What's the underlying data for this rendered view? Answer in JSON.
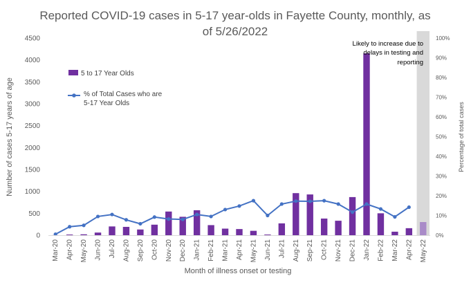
{
  "chart_data": {
    "type": "bar",
    "title_line1": "Reported COVID-19 cases in 5-17 year-olds in Fayette County, monthly, as",
    "title_line2": "of 5/26/2022",
    "xlabel": "Month of illness onset or testing",
    "ylabel": "Number of cases 5-17 years of age",
    "y2label": "Percentage of total cases",
    "ylim": [
      0,
      4500
    ],
    "y2lim": [
      0,
      100
    ],
    "yticks": [
      "0",
      "500",
      "1000",
      "1500",
      "2000",
      "2500",
      "3000",
      "3500",
      "4000",
      "4500"
    ],
    "y2ticks": [
      "0%",
      "10%",
      "20%",
      "30%",
      "40%",
      "50%",
      "60%",
      "70%",
      "80%",
      "90%",
      "100%"
    ],
    "categories": [
      "Mar-20",
      "Apr-20",
      "May-20",
      "Jun-20",
      "Jul-20",
      "Aug-20",
      "Sep-20",
      "Oct-20",
      "Nov-20",
      "Dec-20",
      "Jan-21",
      "Feb-21",
      "Mar-21",
      "Apr-21",
      "May-21",
      "Jun-21",
      "Jul-21",
      "Aug-21",
      "Sep-21",
      "Oct-21",
      "Nov-21",
      "Dec-21",
      "Jan-22",
      "Feb-22",
      "Mar-22",
      "Apr-22",
      "May-22"
    ],
    "series": [
      {
        "name": "5 to 17 Year Olds",
        "kind": "bar",
        "color": "#7030a0",
        "values": [
          2,
          15,
          20,
          60,
          200,
          190,
          130,
          240,
          540,
          420,
          570,
          230,
          150,
          140,
          100,
          15,
          270,
          960,
          930,
          380,
          330,
          870,
          4150,
          500,
          80,
          160,
          null
        ]
      },
      {
        "name": "5 to 17 Year Olds (partial)",
        "kind": "bar-partial",
        "color": "#a98bc8",
        "values": [
          null,
          null,
          null,
          null,
          null,
          null,
          null,
          null,
          null,
          null,
          null,
          null,
          null,
          null,
          null,
          null,
          null,
          null,
          null,
          null,
          null,
          null,
          null,
          null,
          null,
          null,
          300
        ]
      },
      {
        "name_line1": "% of Total Cases who are",
        "name_line2": "5-17 Year Olds",
        "kind": "line",
        "color": "#4472c4",
        "values": [
          0.5,
          4.3,
          5.0,
          9.5,
          10.5,
          7.8,
          5.8,
          9.2,
          8.2,
          8.0,
          10.5,
          9.5,
          13.0,
          14.8,
          17.5,
          10.0,
          15.8,
          17.3,
          17.2,
          17.5,
          15.8,
          11.7,
          15.8,
          13.3,
          9.3,
          14.2,
          null
        ]
      }
    ],
    "annotation": [
      "Likely to increase due to",
      "delays in testing and",
      "reporting"
    ],
    "shaded_category": "May-22",
    "shade_color": "#d9d9d9",
    "grid": false,
    "legend_position": "top-left"
  }
}
